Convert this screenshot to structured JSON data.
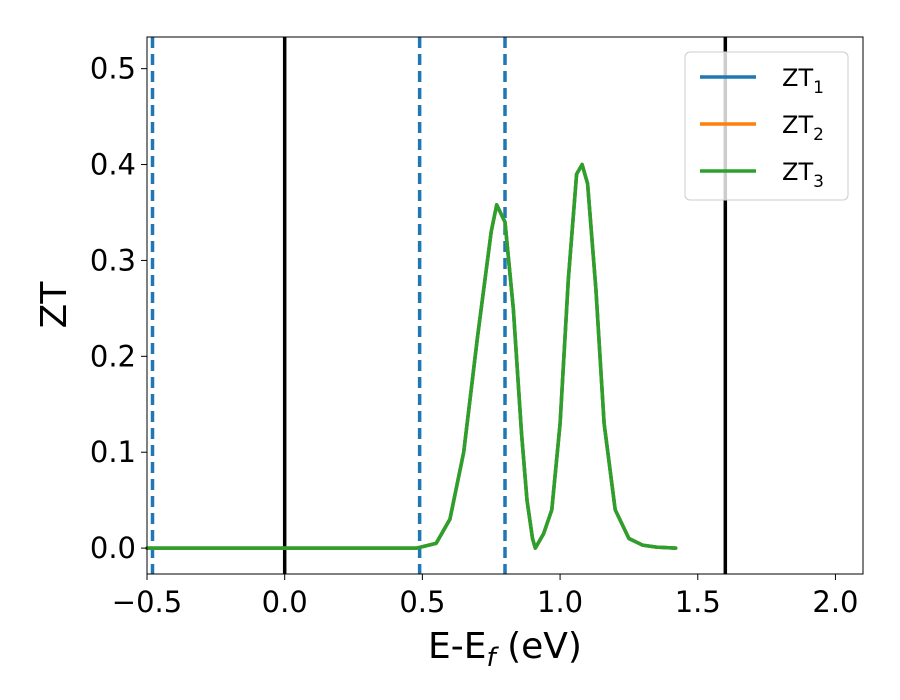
{
  "chart_data": {
    "type": "line",
    "title": "",
    "xlabel": "E-E",
    "xlabel_sub": "f",
    "xlabel_unit": " (eV)",
    "ylabel": "ZT",
    "xlim": [
      -0.5,
      2.1
    ],
    "ylim": [
      -0.027,
      0.533
    ],
    "xticks": [
      -0.5,
      0.0,
      0.5,
      1.0,
      1.5,
      2.0
    ],
    "xtick_labels": [
      "−0.5",
      "0.0",
      "0.5",
      "1.0",
      "1.5",
      "2.0"
    ],
    "yticks": [
      0.0,
      0.1,
      0.2,
      0.3,
      0.4,
      0.5
    ],
    "ytick_labels": [
      "0.0",
      "0.1",
      "0.2",
      "0.3",
      "0.4",
      "0.5"
    ],
    "grid": false,
    "legend_position": "top-right",
    "series": [
      {
        "name": "ZT",
        "sub": "1",
        "color": "#1f77b4",
        "x": [
          -0.5,
          0.0,
          0.48,
          0.55,
          0.6,
          0.65,
          0.7,
          0.75,
          0.77,
          0.8,
          0.83,
          0.86,
          0.88,
          0.9,
          0.91,
          0.94,
          0.97,
          1.0,
          1.03,
          1.06,
          1.08,
          1.1,
          1.13,
          1.16,
          1.2,
          1.25,
          1.3,
          1.35,
          1.42
        ],
        "y": [
          0.0,
          0.0,
          0.0,
          0.005,
          0.03,
          0.1,
          0.22,
          0.33,
          0.358,
          0.34,
          0.25,
          0.12,
          0.05,
          0.01,
          0.0,
          0.015,
          0.04,
          0.13,
          0.28,
          0.39,
          0.4,
          0.38,
          0.27,
          0.13,
          0.04,
          0.01,
          0.003,
          0.001,
          0.0
        ]
      },
      {
        "name": "ZT",
        "sub": "2",
        "color": "#ff7f0e",
        "x": [
          -0.5,
          0.0,
          0.48,
          0.55,
          0.6,
          0.65,
          0.7,
          0.75,
          0.77,
          0.8,
          0.83,
          0.86,
          0.88,
          0.9,
          0.91,
          0.94,
          0.97,
          1.0,
          1.03,
          1.06,
          1.08,
          1.1,
          1.13,
          1.16,
          1.2,
          1.25,
          1.3,
          1.35,
          1.42
        ],
        "y": [
          0.0,
          0.0,
          0.0,
          0.005,
          0.03,
          0.1,
          0.22,
          0.33,
          0.358,
          0.34,
          0.25,
          0.12,
          0.05,
          0.01,
          0.0,
          0.015,
          0.04,
          0.13,
          0.28,
          0.39,
          0.4,
          0.38,
          0.27,
          0.13,
          0.04,
          0.01,
          0.003,
          0.001,
          0.0
        ]
      },
      {
        "name": "ZT",
        "sub": "3",
        "color": "#2ca02c",
        "x": [
          -0.5,
          0.0,
          0.48,
          0.55,
          0.6,
          0.65,
          0.7,
          0.75,
          0.77,
          0.8,
          0.83,
          0.86,
          0.88,
          0.9,
          0.91,
          0.94,
          0.97,
          1.0,
          1.03,
          1.06,
          1.08,
          1.1,
          1.13,
          1.16,
          1.2,
          1.25,
          1.3,
          1.35,
          1.42
        ],
        "y": [
          0.0,
          0.0,
          0.0,
          0.005,
          0.03,
          0.1,
          0.22,
          0.33,
          0.358,
          0.34,
          0.25,
          0.12,
          0.05,
          0.01,
          0.0,
          0.015,
          0.04,
          0.13,
          0.28,
          0.39,
          0.4,
          0.38,
          0.27,
          0.13,
          0.04,
          0.01,
          0.003,
          0.001,
          0.0
        ]
      }
    ],
    "vlines": [
      {
        "x": -0.48,
        "style": "dashed",
        "color": "#1f77b4"
      },
      {
        "x": 0.0,
        "style": "solid",
        "color": "#000000"
      },
      {
        "x": 0.49,
        "style": "dashed",
        "color": "#1f77b4"
      },
      {
        "x": 0.8,
        "style": "dashed",
        "color": "#1f77b4"
      },
      {
        "x": 1.6,
        "style": "solid",
        "color": "#000000"
      }
    ]
  }
}
